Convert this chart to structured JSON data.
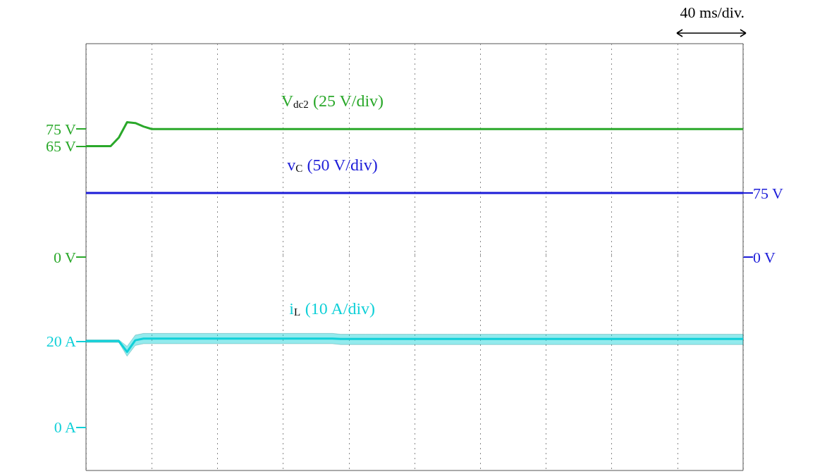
{
  "chart_data": {
    "type": "line",
    "annotations": [
      "40 ms/div."
    ],
    "categories": [
      null,
      null,
      null,
      null,
      null,
      null,
      null,
      null,
      null,
      null,
      null,
      null,
      null,
      null,
      null,
      null,
      null,
      null,
      null,
      null,
      null,
      null,
      null,
      null,
      null,
      null,
      null,
      null,
      null,
      null,
      null,
      null,
      null,
      null,
      null,
      null,
      null,
      null,
      null,
      null,
      null,
      null,
      null,
      null,
      null,
      null,
      null,
      null,
      null,
      null,
      null,
      null,
      null,
      null,
      null,
      null,
      null,
      null,
      null,
      null,
      null,
      null,
      null,
      null,
      null,
      null,
      null,
      null,
      null,
      null,
      null,
      null,
      null,
      null,
      null,
      null,
      null,
      null,
      null,
      null,
      null
    ],
    "ylim": [
      -125,
      125
    ],
    "yticks": [
      {
        "value": 0,
        "label": "0 V"
      },
      {
        "value": 65,
        "label": "65 V"
      },
      {
        "value": 75,
        "label": "75 V"
      }
    ],
    "y2lim": [
      -250,
      250
    ],
    "y2ticks": [
      {
        "value": 0,
        "label": "0 V"
      },
      {
        "value": 75,
        "label": "75 V"
      }
    ],
    "y3lim": [
      -10,
      89
    ],
    "y3ticks": [
      {
        "value": 0,
        "label": "0 A"
      },
      {
        "value": 20,
        "label": "20 A"
      }
    ],
    "tick_labels": "y",
    "grid": "x",
    "series": [
      {
        "name": "V$_{dc2}$ (25 V/div)",
        "color": "#2aa82a",
        "axis": "y",
        "values": [
          65,
          65,
          65,
          65,
          70,
          79,
          78.5,
          76.5,
          75,
          75,
          75,
          75,
          75,
          75,
          75,
          75,
          75,
          75,
          75,
          75,
          75,
          75,
          75,
          75,
          75,
          75,
          75,
          75,
          75,
          75,
          75,
          75,
          75,
          75,
          75,
          75,
          75,
          75,
          75,
          75,
          75,
          75,
          75,
          75,
          75,
          75,
          75,
          75,
          75,
          75,
          75,
          75,
          75,
          75,
          75,
          75,
          75,
          75,
          75,
          75,
          75,
          75,
          75,
          75,
          75,
          75,
          75,
          75,
          75,
          75,
          75,
          75,
          75,
          75,
          75,
          75,
          75,
          75,
          75,
          75,
          75
        ]
      },
      {
        "name": "v$_{C}$ (50 V/div)",
        "color": "#1c1cd8",
        "axis": "y2",
        "values": [
          75,
          75,
          75,
          75,
          75,
          75,
          75,
          75,
          75,
          75,
          75,
          75,
          75,
          75,
          75,
          75,
          75,
          75,
          75,
          75,
          75,
          75,
          75,
          75,
          75,
          75,
          75,
          75,
          75,
          75,
          75,
          75,
          75,
          75,
          75,
          75,
          75,
          75,
          75,
          75,
          75,
          75,
          75,
          75,
          75,
          75,
          75,
          75,
          75,
          75,
          75,
          75,
          75,
          75,
          75,
          75,
          75,
          75,
          75,
          75,
          75,
          75,
          75,
          75,
          75,
          75,
          75,
          75,
          75,
          75,
          75,
          75,
          75,
          75,
          75,
          75,
          75,
          75,
          75,
          75,
          75
        ]
      },
      {
        "name": "i$_{L}$ (10 A/div)",
        "color": "#10d0d8",
        "axis": "y3",
        "values": [
          20,
          20,
          20,
          20,
          20,
          17.5,
          20.2,
          20.6,
          20.6,
          20.6,
          20.6,
          20.6,
          20.6,
          20.6,
          20.6,
          20.6,
          20.6,
          20.6,
          20.6,
          20.6,
          20.6,
          20.6,
          20.6,
          20.6,
          20.6,
          20.6,
          20.6,
          20.6,
          20.6,
          20.6,
          20.6,
          20.5,
          20.5,
          20.5,
          20.5,
          20.5,
          20.5,
          20.5,
          20.5,
          20.5,
          20.5,
          20.5,
          20.5,
          20.5,
          20.5,
          20.5,
          20.5,
          20.5,
          20.5,
          20.5,
          20.5,
          20.5,
          20.5,
          20.5,
          20.5,
          20.5,
          20.5,
          20.5,
          20.5,
          20.5,
          20.5,
          20.5,
          20.5,
          20.5,
          20.5,
          20.5,
          20.5,
          20.5,
          20.5,
          20.5,
          20.5,
          20.5,
          20.5,
          20.5,
          20.5,
          20.5,
          20.5,
          20.5,
          20.5,
          20.5,
          20.5
        ],
        "lower": [
          19.7,
          19.7,
          19.7,
          19.7,
          19.7,
          16.5,
          19,
          19.4,
          19.4,
          19.4,
          19.4,
          19.4,
          19.4,
          19.4,
          19.4,
          19.4,
          19.4,
          19.4,
          19.4,
          19.4,
          19.4,
          19.4,
          19.4,
          19.4,
          19.4,
          19.4,
          19.4,
          19.4,
          19.4,
          19.4,
          19.4,
          19.2,
          19.2,
          19.2,
          19.2,
          19.2,
          19.2,
          19.2,
          19.2,
          19.2,
          19.2,
          19.2,
          19.2,
          19.2,
          19.2,
          19.2,
          19.2,
          19.2,
          19.2,
          19.2,
          19.2,
          19.2,
          19.2,
          19.2,
          19.2,
          19.2,
          19.2,
          19.2,
          19.2,
          19.2,
          19.2,
          19.2,
          19.2,
          19.2,
          19.2,
          19.2,
          19.2,
          19.2,
          19.2,
          19.2,
          19.2,
          19.2,
          19.2,
          19.2,
          19.2,
          19.2,
          19.2,
          19.2,
          19.2,
          19.2,
          19.2
        ],
        "upper": [
          20.3,
          20.3,
          20.3,
          20.3,
          20.3,
          18.8,
          21.4,
          21.8,
          21.8,
          21.8,
          21.8,
          21.8,
          21.8,
          21.8,
          21.8,
          21.8,
          21.8,
          21.8,
          21.8,
          21.8,
          21.8,
          21.8,
          21.8,
          21.8,
          21.8,
          21.8,
          21.8,
          21.8,
          21.8,
          21.8,
          21.8,
          21.6,
          21.6,
          21.6,
          21.6,
          21.6,
          21.6,
          21.6,
          21.6,
          21.6,
          21.6,
          21.6,
          21.6,
          21.6,
          21.6,
          21.6,
          21.6,
          21.6,
          21.6,
          21.6,
          21.6,
          21.6,
          21.6,
          21.6,
          21.6,
          21.6,
          21.6,
          21.6,
          21.6,
          21.6,
          21.6,
          21.6,
          21.6,
          21.6,
          21.6,
          21.6,
          21.6,
          21.6,
          21.6,
          21.6,
          21.6,
          21.6,
          21.6,
          21.6,
          21.6,
          21.6,
          21.6,
          21.6,
          21.6,
          21.6,
          21.6
        ]
      }
    ]
  }
}
